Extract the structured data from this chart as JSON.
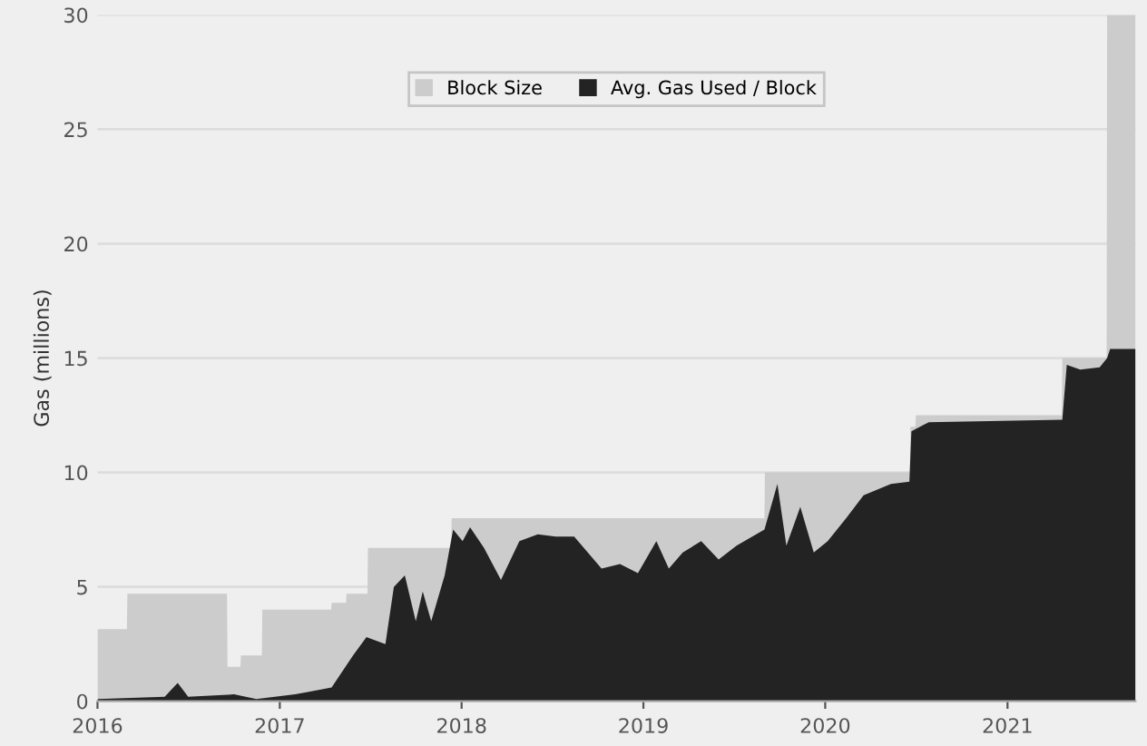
{
  "chart_data": {
    "type": "area",
    "ylabel": "Gas (millions)",
    "xlim": [
      "2016-01-01",
      "2021-09-15"
    ],
    "xticks": [
      "2016",
      "2017",
      "2018",
      "2019",
      "2020",
      "2021"
    ],
    "ylim": [
      0,
      30
    ],
    "yticks": [
      0,
      5,
      10,
      15,
      20,
      25,
      30
    ],
    "grid": "y",
    "legend": "top",
    "series": [
      {
        "name": "Block Size",
        "color": "#cccccc",
        "x": [
          "2016-01-01",
          "2016-02-29",
          "2016-03-01",
          "2016-09-17",
          "2016-09-18",
          "2016-10-14",
          "2016-10-15",
          "2016-11-26",
          "2016-11-27",
          "2017-04-14",
          "2017-04-15",
          "2017-05-14",
          "2017-05-15",
          "2017-06-26",
          "2017-06-27",
          "2017-12-11",
          "2017-12-12",
          "2019-09-01",
          "2019-09-02",
          "2020-06-19",
          "2020-06-20",
          "2020-06-30",
          "2020-07-01",
          "2021-04-20",
          "2021-04-21",
          "2021-07-19",
          "2021-07-20",
          "2021-09-15"
        ],
        "values": [
          3.15,
          3.15,
          4.7,
          4.7,
          1.5,
          1.5,
          2.0,
          2.0,
          4.0,
          4.0,
          4.3,
          4.3,
          4.7,
          4.7,
          6.7,
          6.7,
          8.0,
          8.0,
          10.0,
          10.0,
          12.0,
          12.0,
          12.5,
          12.5,
          15.0,
          15.0,
          30.0,
          30.0
        ]
      },
      {
        "name": "Avg. Gas Used / Block",
        "color": "#232323",
        "x": [
          "2016-01-01",
          "2016-05-15",
          "2016-06-10",
          "2016-07-01",
          "2016-10-01",
          "2016-11-15",
          "2017-02-01",
          "2017-04-15",
          "2017-05-28",
          "2017-06-24",
          "2017-08-01",
          "2017-08-18",
          "2017-09-09",
          "2017-10-01",
          "2017-10-15",
          "2017-11-01",
          "2017-11-28",
          "2017-12-15",
          "2018-01-03",
          "2018-01-18",
          "2018-02-15",
          "2018-03-21",
          "2018-04-27",
          "2018-06-03",
          "2018-07-09",
          "2018-08-15",
          "2018-10-09",
          "2018-11-15",
          "2018-12-21",
          "2019-01-27",
          "2019-02-21",
          "2019-03-21",
          "2019-04-27",
          "2019-06-01",
          "2019-07-07",
          "2019-09-01",
          "2019-09-27",
          "2019-10-15",
          "2019-11-12",
          "2019-12-09",
          "2020-01-06",
          "2020-02-12",
          "2020-03-18",
          "2020-05-12",
          "2020-06-18",
          "2020-06-22",
          "2020-07-27",
          "2021-04-21",
          "2021-04-30",
          "2021-05-27",
          "2021-07-05",
          "2021-07-20",
          "2021-07-26",
          "2021-09-15"
        ],
        "values": [
          0.1,
          0.2,
          0.8,
          0.2,
          0.3,
          0.1,
          0.3,
          0.6,
          2.0,
          2.8,
          2.5,
          5.0,
          5.5,
          3.5,
          4.8,
          3.5,
          5.5,
          7.5,
          7.0,
          7.6,
          6.7,
          5.3,
          7.0,
          7.3,
          7.2,
          7.2,
          5.8,
          6.0,
          5.6,
          7.0,
          5.8,
          6.5,
          7.0,
          6.2,
          6.8,
          7.5,
          9.5,
          6.8,
          8.5,
          6.5,
          7.0,
          8.0,
          9.0,
          9.5,
          9.6,
          11.8,
          12.2,
          12.3,
          14.7,
          14.5,
          14.6,
          15.0,
          15.4,
          15.4
        ]
      }
    ]
  }
}
